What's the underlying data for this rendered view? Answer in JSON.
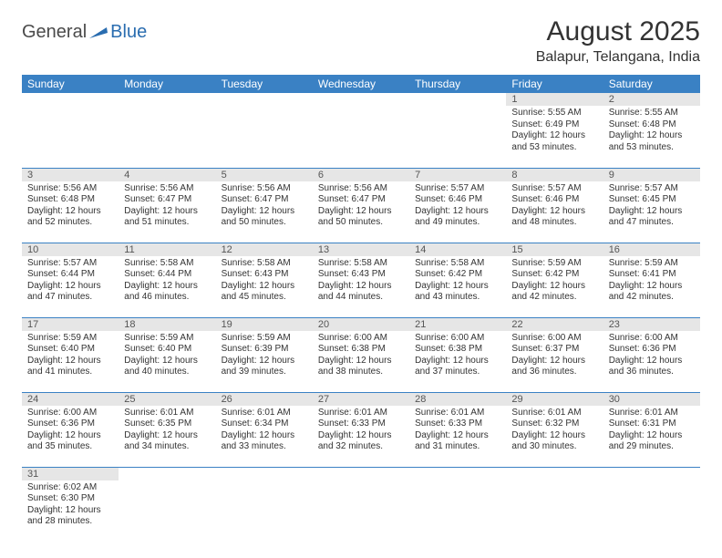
{
  "logo": {
    "general": "General",
    "blue": "Blue"
  },
  "title": "August 2025",
  "subtitle": "Balapur, Telangana, India",
  "colors": {
    "header_bg": "#3a81c4",
    "header_text": "#ffffff",
    "daynum_bg": "#e6e6e6",
    "border": "#3a81c4",
    "logo_blue": "#2a6db0",
    "logo_gray": "#4a4a4a"
  },
  "day_headers": [
    "Sunday",
    "Monday",
    "Tuesday",
    "Wednesday",
    "Thursday",
    "Friday",
    "Saturday"
  ],
  "weeks": [
    [
      null,
      null,
      null,
      null,
      null,
      {
        "n": "1",
        "sr": "Sunrise: 5:55 AM",
        "ss": "Sunset: 6:49 PM",
        "d1": "Daylight: 12 hours",
        "d2": "and 53 minutes."
      },
      {
        "n": "2",
        "sr": "Sunrise: 5:55 AM",
        "ss": "Sunset: 6:48 PM",
        "d1": "Daylight: 12 hours",
        "d2": "and 53 minutes."
      }
    ],
    [
      {
        "n": "3",
        "sr": "Sunrise: 5:56 AM",
        "ss": "Sunset: 6:48 PM",
        "d1": "Daylight: 12 hours",
        "d2": "and 52 minutes."
      },
      {
        "n": "4",
        "sr": "Sunrise: 5:56 AM",
        "ss": "Sunset: 6:47 PM",
        "d1": "Daylight: 12 hours",
        "d2": "and 51 minutes."
      },
      {
        "n": "5",
        "sr": "Sunrise: 5:56 AM",
        "ss": "Sunset: 6:47 PM",
        "d1": "Daylight: 12 hours",
        "d2": "and 50 minutes."
      },
      {
        "n": "6",
        "sr": "Sunrise: 5:56 AM",
        "ss": "Sunset: 6:47 PM",
        "d1": "Daylight: 12 hours",
        "d2": "and 50 minutes."
      },
      {
        "n": "7",
        "sr": "Sunrise: 5:57 AM",
        "ss": "Sunset: 6:46 PM",
        "d1": "Daylight: 12 hours",
        "d2": "and 49 minutes."
      },
      {
        "n": "8",
        "sr": "Sunrise: 5:57 AM",
        "ss": "Sunset: 6:46 PM",
        "d1": "Daylight: 12 hours",
        "d2": "and 48 minutes."
      },
      {
        "n": "9",
        "sr": "Sunrise: 5:57 AM",
        "ss": "Sunset: 6:45 PM",
        "d1": "Daylight: 12 hours",
        "d2": "and 47 minutes."
      }
    ],
    [
      {
        "n": "10",
        "sr": "Sunrise: 5:57 AM",
        "ss": "Sunset: 6:44 PM",
        "d1": "Daylight: 12 hours",
        "d2": "and 47 minutes."
      },
      {
        "n": "11",
        "sr": "Sunrise: 5:58 AM",
        "ss": "Sunset: 6:44 PM",
        "d1": "Daylight: 12 hours",
        "d2": "and 46 minutes."
      },
      {
        "n": "12",
        "sr": "Sunrise: 5:58 AM",
        "ss": "Sunset: 6:43 PM",
        "d1": "Daylight: 12 hours",
        "d2": "and 45 minutes."
      },
      {
        "n": "13",
        "sr": "Sunrise: 5:58 AM",
        "ss": "Sunset: 6:43 PM",
        "d1": "Daylight: 12 hours",
        "d2": "and 44 minutes."
      },
      {
        "n": "14",
        "sr": "Sunrise: 5:58 AM",
        "ss": "Sunset: 6:42 PM",
        "d1": "Daylight: 12 hours",
        "d2": "and 43 minutes."
      },
      {
        "n": "15",
        "sr": "Sunrise: 5:59 AM",
        "ss": "Sunset: 6:42 PM",
        "d1": "Daylight: 12 hours",
        "d2": "and 42 minutes."
      },
      {
        "n": "16",
        "sr": "Sunrise: 5:59 AM",
        "ss": "Sunset: 6:41 PM",
        "d1": "Daylight: 12 hours",
        "d2": "and 42 minutes."
      }
    ],
    [
      {
        "n": "17",
        "sr": "Sunrise: 5:59 AM",
        "ss": "Sunset: 6:40 PM",
        "d1": "Daylight: 12 hours",
        "d2": "and 41 minutes."
      },
      {
        "n": "18",
        "sr": "Sunrise: 5:59 AM",
        "ss": "Sunset: 6:40 PM",
        "d1": "Daylight: 12 hours",
        "d2": "and 40 minutes."
      },
      {
        "n": "19",
        "sr": "Sunrise: 5:59 AM",
        "ss": "Sunset: 6:39 PM",
        "d1": "Daylight: 12 hours",
        "d2": "and 39 minutes."
      },
      {
        "n": "20",
        "sr": "Sunrise: 6:00 AM",
        "ss": "Sunset: 6:38 PM",
        "d1": "Daylight: 12 hours",
        "d2": "and 38 minutes."
      },
      {
        "n": "21",
        "sr": "Sunrise: 6:00 AM",
        "ss": "Sunset: 6:38 PM",
        "d1": "Daylight: 12 hours",
        "d2": "and 37 minutes."
      },
      {
        "n": "22",
        "sr": "Sunrise: 6:00 AM",
        "ss": "Sunset: 6:37 PM",
        "d1": "Daylight: 12 hours",
        "d2": "and 36 minutes."
      },
      {
        "n": "23",
        "sr": "Sunrise: 6:00 AM",
        "ss": "Sunset: 6:36 PM",
        "d1": "Daylight: 12 hours",
        "d2": "and 36 minutes."
      }
    ],
    [
      {
        "n": "24",
        "sr": "Sunrise: 6:00 AM",
        "ss": "Sunset: 6:36 PM",
        "d1": "Daylight: 12 hours",
        "d2": "and 35 minutes."
      },
      {
        "n": "25",
        "sr": "Sunrise: 6:01 AM",
        "ss": "Sunset: 6:35 PM",
        "d1": "Daylight: 12 hours",
        "d2": "and 34 minutes."
      },
      {
        "n": "26",
        "sr": "Sunrise: 6:01 AM",
        "ss": "Sunset: 6:34 PM",
        "d1": "Daylight: 12 hours",
        "d2": "and 33 minutes."
      },
      {
        "n": "27",
        "sr": "Sunrise: 6:01 AM",
        "ss": "Sunset: 6:33 PM",
        "d1": "Daylight: 12 hours",
        "d2": "and 32 minutes."
      },
      {
        "n": "28",
        "sr": "Sunrise: 6:01 AM",
        "ss": "Sunset: 6:33 PM",
        "d1": "Daylight: 12 hours",
        "d2": "and 31 minutes."
      },
      {
        "n": "29",
        "sr": "Sunrise: 6:01 AM",
        "ss": "Sunset: 6:32 PM",
        "d1": "Daylight: 12 hours",
        "d2": "and 30 minutes."
      },
      {
        "n": "30",
        "sr": "Sunrise: 6:01 AM",
        "ss": "Sunset: 6:31 PM",
        "d1": "Daylight: 12 hours",
        "d2": "and 29 minutes."
      }
    ],
    [
      {
        "n": "31",
        "sr": "Sunrise: 6:02 AM",
        "ss": "Sunset: 6:30 PM",
        "d1": "Daylight: 12 hours",
        "d2": "and 28 minutes."
      },
      null,
      null,
      null,
      null,
      null,
      null
    ]
  ]
}
